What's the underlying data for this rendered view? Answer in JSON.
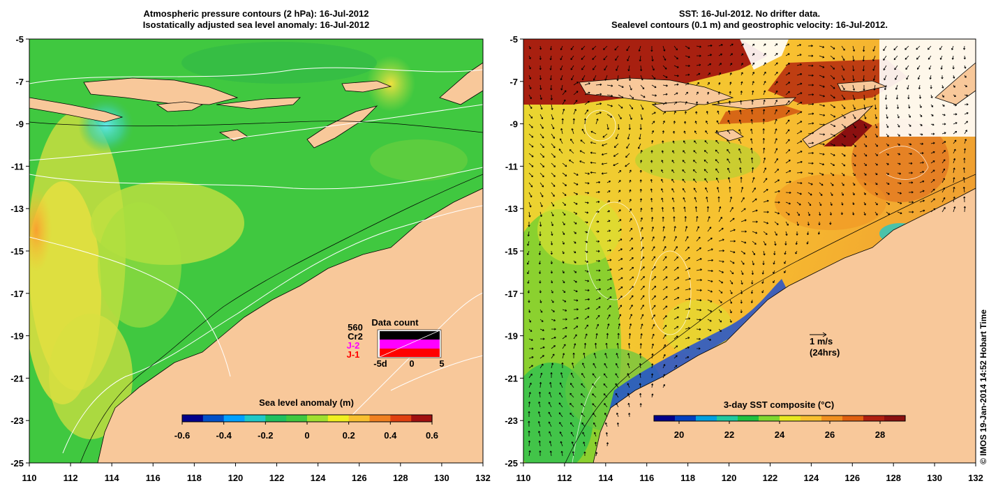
{
  "left_panel": {
    "title_line1": "Atmospheric pressure contours (2 hPa): 16-Jul-2012",
    "title_line2": "Isostatically adjusted sea level anomaly: 16-Jul-2012",
    "colorbar": {
      "title": "Sea level anomaly (m)",
      "range": [
        -0.6,
        0.6
      ],
      "ticks": [
        "-0.6",
        "-0.4",
        "-0.2",
        "0",
        "0.2",
        "0.4",
        "0.6"
      ],
      "colors": [
        "#00008b",
        "#0050c8",
        "#00a0ff",
        "#20c8c8",
        "#20c060",
        "#40c840",
        "#a0e030",
        "#f0f020",
        "#f8c030",
        "#f08020",
        "#e04010",
        "#a01010"
      ]
    },
    "data_count": {
      "title": "Data count",
      "max_label": "560",
      "satellites": [
        {
          "name": "Cr2",
          "color": "#000000"
        },
        {
          "name": "J-2",
          "color": "#ff00ff"
        },
        {
          "name": "J-1",
          "color": "#ff0000"
        }
      ],
      "x_ticks": [
        "-5d",
        "0",
        "5"
      ]
    }
  },
  "right_panel": {
    "title_line1": "SST: 16-Jul-2012. No drifter data.",
    "title_line2": "Sealevel contours (0.1 m) and geostrophic velocity: 16-Jul-2012.",
    "colorbar": {
      "title": "3-day SST composite (°C)",
      "range": [
        19,
        29
      ],
      "ticks": [
        "20",
        "22",
        "24",
        "26",
        "28"
      ],
      "colors": [
        "#00008b",
        "#0040c0",
        "#00a0e0",
        "#20c8a0",
        "#20c040",
        "#80d830",
        "#e8e820",
        "#f8c030",
        "#f09020",
        "#e06010",
        "#b02010",
        "#8b1010"
      ]
    },
    "velocity_key": {
      "label": "1 m/s",
      "sublabel": "(24hrs)"
    }
  },
  "axes": {
    "x_ticks": [
      "110",
      "112",
      "114",
      "116",
      "118",
      "120",
      "122",
      "124",
      "126",
      "128",
      "130",
      "132"
    ],
    "y_ticks": [
      "-5",
      "-7",
      "-9",
      "-11",
      "-13",
      "-15",
      "-17",
      "-19",
      "-21",
      "-23",
      "-25"
    ],
    "lon_range": [
      110,
      132
    ],
    "lat_range": [
      -25,
      -5
    ]
  },
  "colors": {
    "land": "#f8c89a",
    "coast": "#000000",
    "contour": "#ffffff"
  },
  "credit": "© IMOS 19-Jan-2014 14:52 Hobart Time"
}
